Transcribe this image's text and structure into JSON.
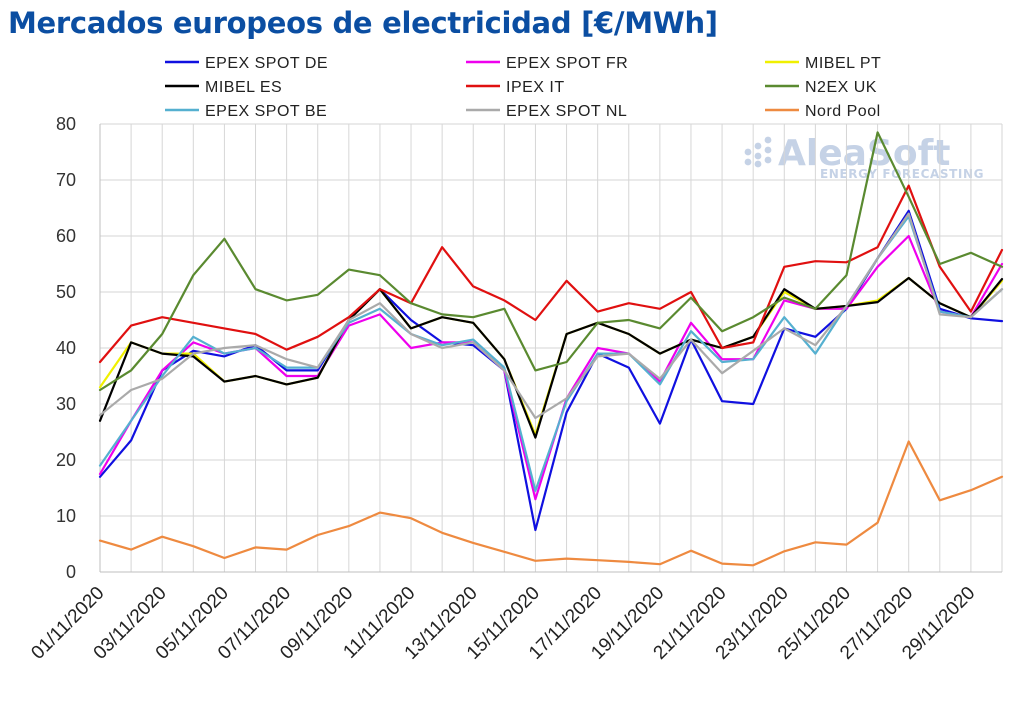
{
  "chart_data": {
    "type": "line",
    "title": "Mercados europeos de electricidad [€/MWh]",
    "watermark": {
      "brand": "AleaSoft",
      "tagline": "ENERGY FORECASTING"
    },
    "xlabel": "",
    "ylabel": "",
    "ylim": [
      0,
      80
    ],
    "yticks": [
      "0",
      "10",
      "20",
      "30",
      "40",
      "50",
      "60",
      "70",
      "80"
    ],
    "grid": "vertical-and-horizontal",
    "legend_position": "top",
    "x": [
      "01/11/2020",
      "02/11/2020",
      "03/11/2020",
      "04/11/2020",
      "05/11/2020",
      "06/11/2020",
      "07/11/2020",
      "08/11/2020",
      "09/11/2020",
      "10/11/2020",
      "11/11/2020",
      "12/11/2020",
      "13/11/2020",
      "14/11/2020",
      "15/11/2020",
      "16/11/2020",
      "17/11/2020",
      "18/11/2020",
      "19/11/2020",
      "20/11/2020",
      "21/11/2020",
      "22/11/2020",
      "23/11/2020",
      "24/11/2020",
      "25/11/2020",
      "26/11/2020",
      "27/11/2020",
      "28/11/2020",
      "29/11/2020",
      "30/11/2020"
    ],
    "xtick_labels": [
      "01/11/2020",
      "03/11/2020",
      "05/11/2020",
      "07/11/2020",
      "09/11/2020",
      "11/11/2020",
      "13/11/2020",
      "15/11/2020",
      "17/11/2020",
      "19/11/2020",
      "21/11/2020",
      "23/11/2020",
      "25/11/2020",
      "27/11/2020",
      "29/11/2020"
    ],
    "series": [
      {
        "name": "EPEX SPOT DE",
        "color": "#1010e0",
        "values": [
          17,
          23.5,
          36,
          39.5,
          38.5,
          40.5,
          36,
          36,
          45,
          50.5,
          45,
          41,
          40.5,
          36,
          7.5,
          28.5,
          39,
          36.5,
          26.5,
          41.5,
          30.5,
          30,
          43.5,
          42,
          47,
          56,
          64.5,
          47,
          45.3,
          44.8
        ]
      },
      {
        "name": "EPEX SPOT FR",
        "color": "#ee00ee",
        "values": [
          17.5,
          27,
          36,
          41,
          39,
          40,
          35,
          35,
          44,
          46,
          40,
          41,
          41,
          36,
          13,
          31,
          40,
          39,
          34,
          44.5,
          38,
          38,
          48.5,
          47,
          47,
          54.5,
          60,
          46.5,
          45.5,
          55
        ]
      },
      {
        "name": "MIBEL PT",
        "color": "#f0f000",
        "values": [
          33,
          41,
          39,
          39,
          34,
          35,
          33.5,
          34.7,
          45,
          50.5,
          43.5,
          45.5,
          44.5,
          38,
          24.5,
          42.5,
          44.5,
          42.5,
          39,
          41.5,
          40,
          42,
          50,
          47,
          47.5,
          48.5,
          52.5,
          48,
          45.5,
          52
        ]
      },
      {
        "name": "MIBEL ES",
        "color": "#000000",
        "values": [
          27,
          41,
          39,
          38.5,
          34,
          35,
          33.5,
          34.7,
          45,
          50.5,
          43.5,
          45.5,
          44.5,
          38,
          24,
          42.5,
          44.5,
          42.5,
          39,
          41.5,
          40,
          42,
          50.5,
          47,
          47.5,
          48.2,
          52.5,
          48,
          45.5,
          52.3
        ]
      },
      {
        "name": "IPEX IT",
        "color": "#e01010",
        "values": [
          37.5,
          44,
          45.5,
          44.5,
          43.5,
          42.5,
          39.7,
          42,
          45.5,
          50.5,
          48,
          58,
          51,
          48.5,
          45,
          52,
          46.5,
          48,
          47,
          50,
          40,
          41,
          54.5,
          55.5,
          55.3,
          58,
          69,
          54.5,
          46.5,
          57.5
        ]
      },
      {
        "name": "N2EX UK",
        "color": "#5a8a30",
        "values": [
          32.5,
          36,
          42.5,
          53,
          59.5,
          50.5,
          48.5,
          49.5,
          54,
          53,
          48,
          46,
          45.5,
          47,
          36,
          37.5,
          44.5,
          45,
          43.5,
          49,
          43,
          45.5,
          49,
          47,
          53,
          78.5,
          67,
          55,
          57,
          54.5
        ]
      },
      {
        "name": "EPEX SPOT BE",
        "color": "#55b0d0",
        "values": [
          19,
          27,
          35,
          42,
          39,
          40,
          36.5,
          36.5,
          44.5,
          47,
          42.5,
          40.5,
          41.5,
          36.5,
          14.5,
          30.5,
          39,
          39,
          33.5,
          43,
          37.5,
          38,
          45.5,
          39,
          47.5,
          56,
          63.5,
          46.5,
          45.5,
          50.5
        ]
      },
      {
        "name": "EPEX SPOT NL",
        "color": "#aaaaaa",
        "values": [
          28,
          32.5,
          34.5,
          39,
          40,
          40.5,
          38,
          36.5,
          45,
          48,
          42.5,
          40,
          41,
          36,
          27.5,
          31,
          38.5,
          39,
          34.5,
          41.5,
          35.5,
          39.5,
          43.5,
          40.5,
          47.5,
          56,
          64,
          46,
          45.5,
          50.5
        ]
      },
      {
        "name": "Nord Pool",
        "color": "#ee8a40",
        "values": [
          5.6,
          4,
          6.3,
          4.6,
          2.5,
          4.4,
          4,
          6.6,
          8.2,
          10.6,
          9.6,
          7,
          5.2,
          3.6,
          2,
          2.4,
          2.1,
          1.8,
          1.4,
          3.8,
          1.5,
          1.2,
          3.7,
          5.3,
          4.9,
          8.8,
          23.3,
          12.8,
          14.6,
          17
        ]
      }
    ]
  }
}
